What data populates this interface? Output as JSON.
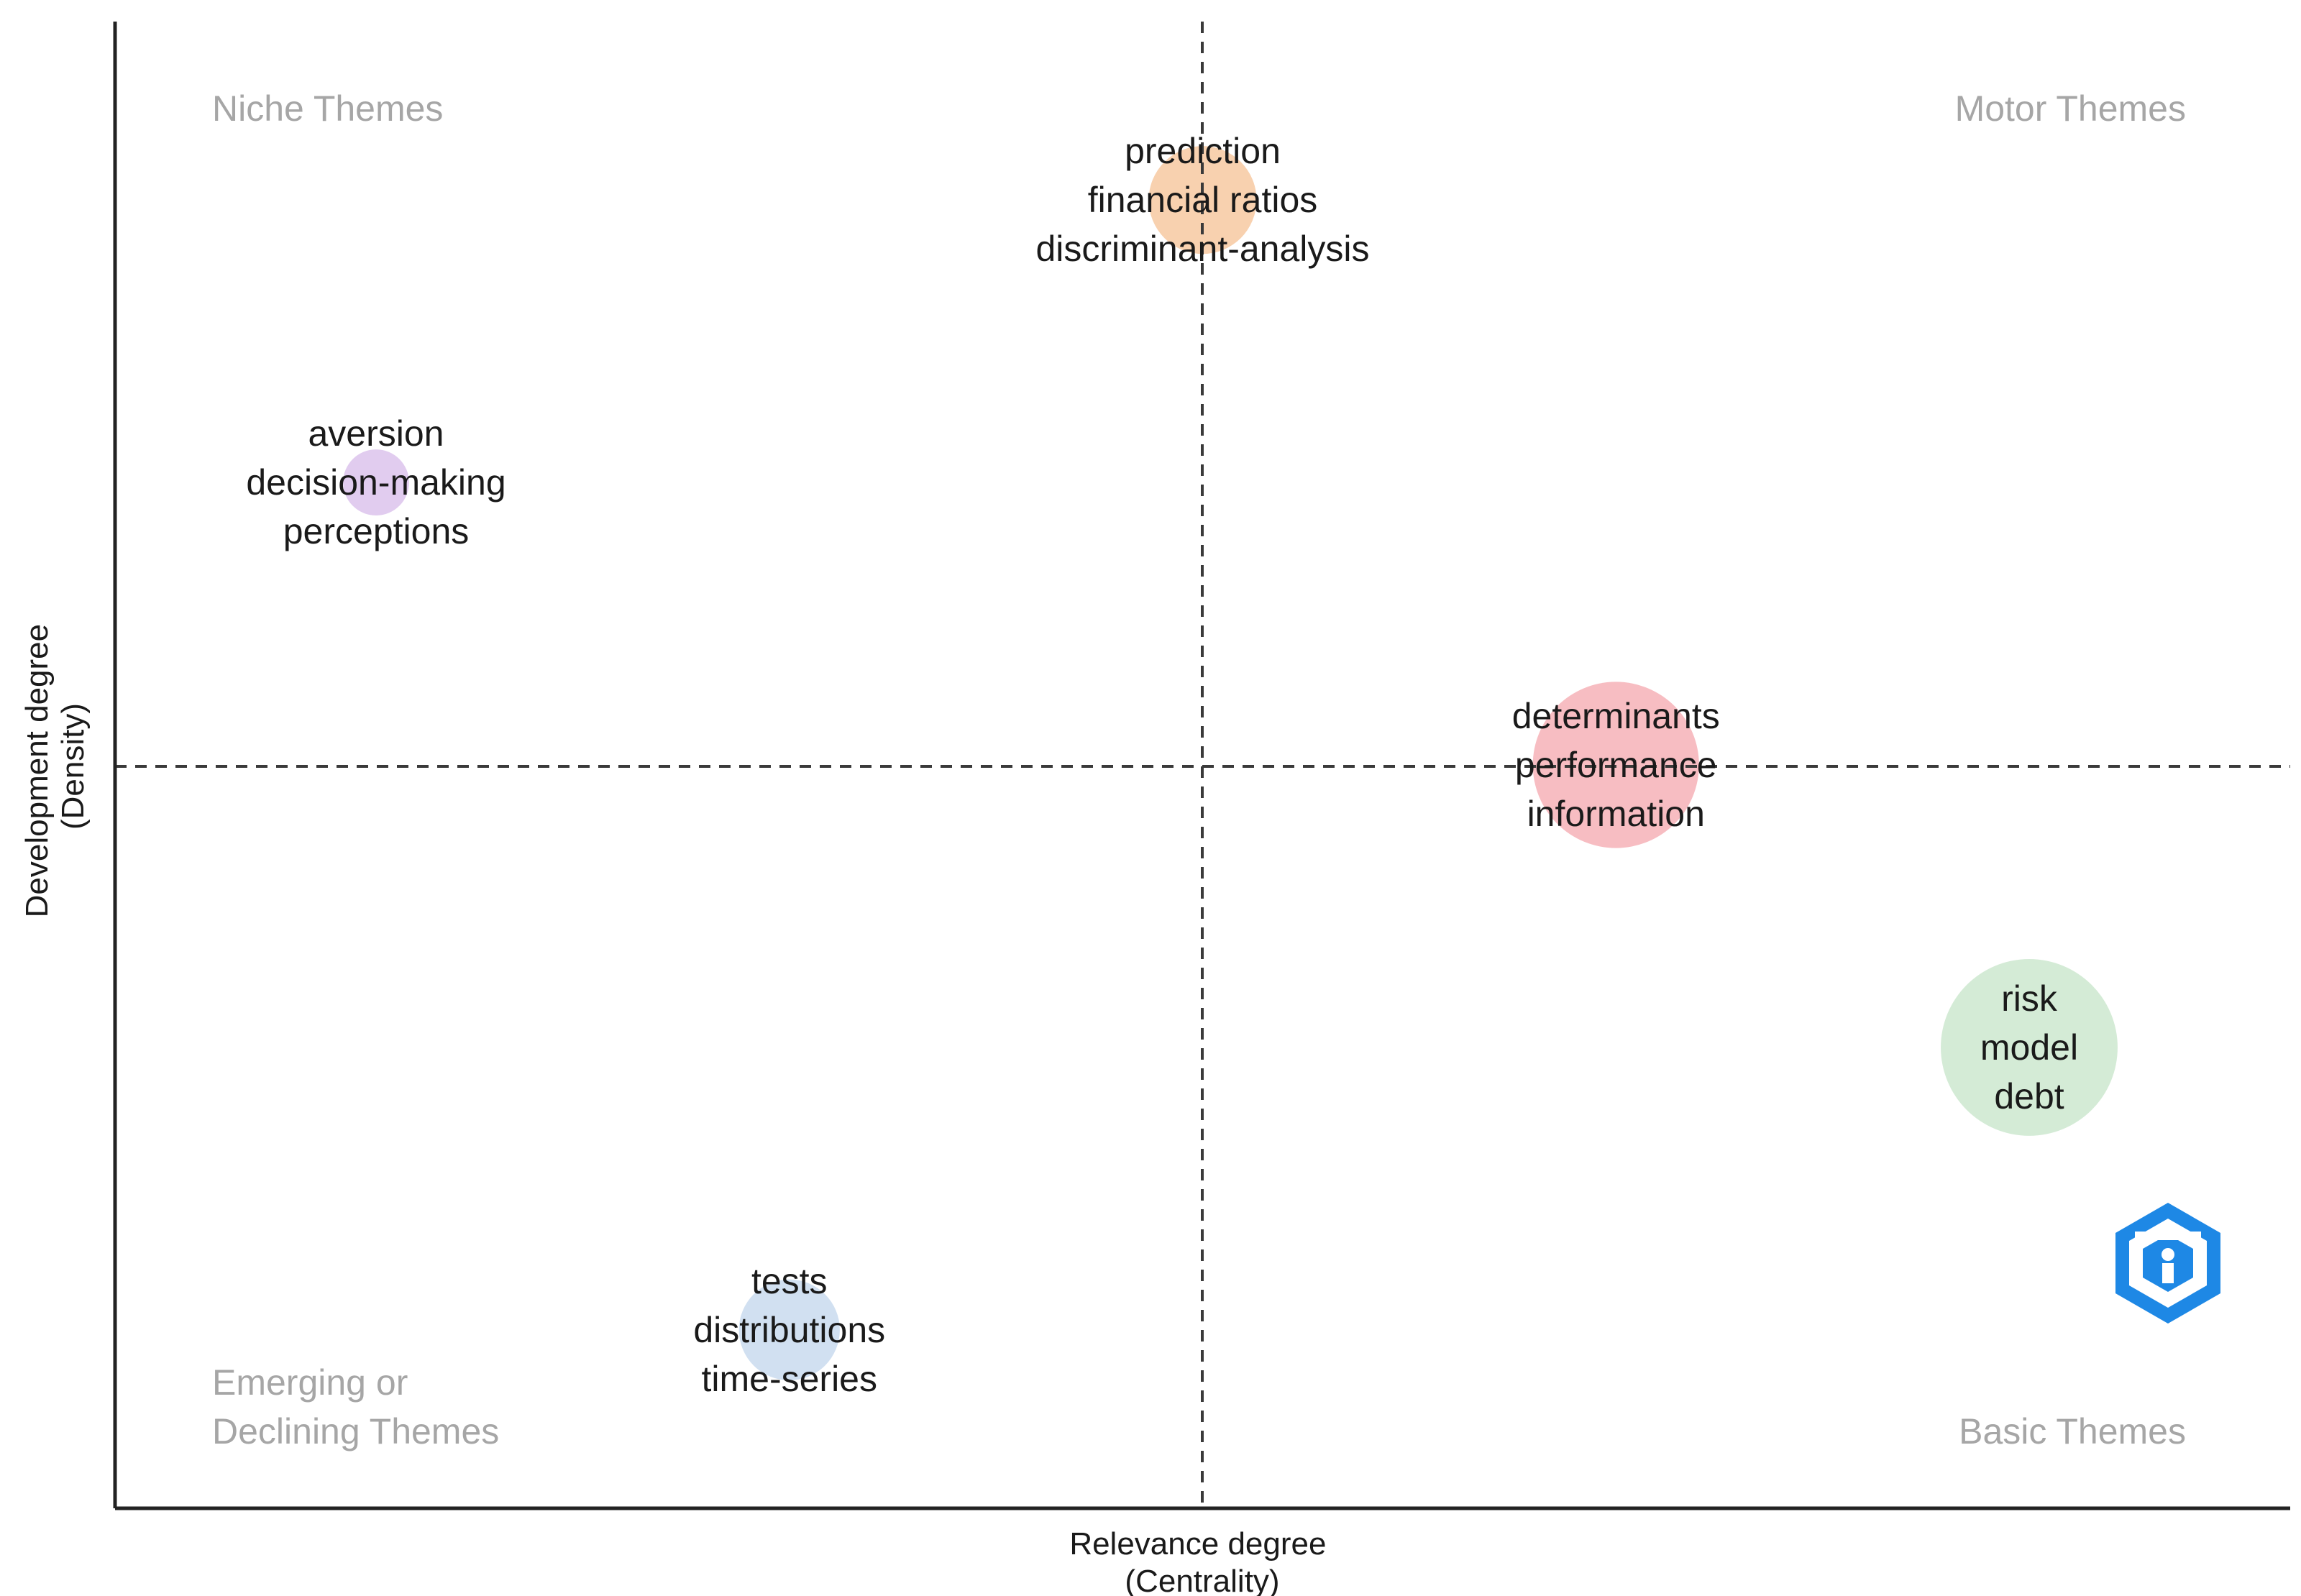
{
  "chart_data": {
    "type": "scatter",
    "title": "",
    "xlabel": "Relevance degree\n(Centrality)",
    "ylabel": "Development degree\n(Density)",
    "xlabel_lines": [
      "Relevance degree",
      "(Centrality)"
    ],
    "ylabel_lines": [
      "Development degree",
      "(Density)"
    ],
    "xlim": [
      0,
      1
    ],
    "ylim": [
      0,
      1
    ],
    "x_divider": 0.5,
    "y_divider": 0.5,
    "grid": false,
    "quadrant_labels": {
      "top_left": [
        "Niche Themes"
      ],
      "top_right": [
        "Motor Themes"
      ],
      "bottom_left": [
        "Emerging or",
        "Declining Themes"
      ],
      "bottom_right": [
        "Basic Themes"
      ]
    },
    "clusters": [
      {
        "name": "prediction",
        "terms": [
          "prediction",
          "financial ratios",
          "discriminant-analysis"
        ],
        "x": 0.5,
        "y": 0.88,
        "size": 0.16,
        "color": "#f7c9a1"
      },
      {
        "name": "aversion",
        "terms": [
          "aversion",
          "decision-making",
          "perceptions"
        ],
        "x": 0.12,
        "y": 0.69,
        "size": 0.06,
        "color": "#dcc3ec"
      },
      {
        "name": "determinants",
        "terms": [
          "determinants",
          "performance",
          "information"
        ],
        "x": 0.69,
        "y": 0.5,
        "size": 0.38,
        "color": "#f6b2b7"
      },
      {
        "name": "risk",
        "terms": [
          "risk",
          "model",
          "debt"
        ],
        "x": 0.88,
        "y": 0.31,
        "size": 0.43,
        "color": "#cde7cf"
      },
      {
        "name": "tests",
        "terms": [
          "tests",
          "distributions",
          "time-series"
        ],
        "x": 0.31,
        "y": 0.12,
        "size": 0.14,
        "color": "#c9dbef"
      }
    ]
  },
  "logo": {
    "name": "bibliometrix-logo",
    "color": "#1e88e5"
  }
}
